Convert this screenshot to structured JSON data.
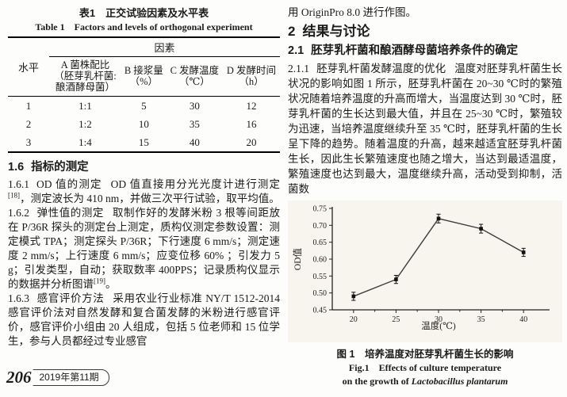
{
  "table": {
    "title_zh": "表1　正交试验因素及水平表",
    "title_en": "Table 1　Factors and levels of orthogonal experiment",
    "level_header": "水平",
    "group_header": "因素",
    "subheaders": [
      [
        "A 菌株配比",
        "（胚芽乳杆菌:",
        "酿酒酵母菌）"
      ],
      [
        "B 接浆量",
        "（%）"
      ],
      [
        "C 发酵温度",
        "（℃）"
      ],
      [
        "D 发酵时间",
        "（h）"
      ]
    ],
    "rows": [
      [
        "1",
        "1:1",
        "5",
        "30",
        "12"
      ],
      [
        "2",
        "1:2",
        "10",
        "35",
        "16"
      ],
      [
        "3",
        "1:4",
        "15",
        "40",
        "20"
      ]
    ]
  },
  "left": {
    "s16_num": "1.6",
    "s16_title": "指标的测定",
    "p161_num": "1.6.1",
    "p161_title": "OD 值的测定",
    "p161_a": "OD 值直接用分光光度计进行测定",
    "p161_sup": "[18]",
    "p161_b": "，测定波长为 410 nm，并做三次平行试验，取平均值。",
    "p162_num": "1.6.2",
    "p162_title": "弹性值的测定",
    "p162_a": "取制作好的发酵米粉 3 根等间距放在 P/36R 探头的测定台上测定，质构仪测定参数设置：测定模式 TPA；测定探头 P/36R；下行速度 6 mm/s；测定速度 2 mm/s；上行速度 6 mm/s；应变位移 60% ；引发力 5 g；引发类型，自动；获取数率 400PPS；记录质构仪显示的数据并分析图谱",
    "p162_sup": "[19]",
    "p162_b": "。",
    "p163_num": "1.6.3",
    "p163_title": "感官评价方法",
    "p163_a": "采用农业行业标准 NY/T 1512-2014 感官评价法对自然发酵和复合菌发酵的米粉进行感官评价，感官评价小组由 20 人组成，包括 5 位老师和 15 位学生，参与人员都经过专业感官"
  },
  "right": {
    "intro": "用 OriginPro 8.0 进行作图。",
    "h2_num": "2",
    "h2_title": "结果与讨论",
    "h21_num": "2.1",
    "h21_title": "胚芽乳杆菌和酿酒酵母菌培养条件的确定",
    "p211_num": "2.1.1",
    "p211_title": "胚芽乳杆菌发酵温度的优化",
    "p211_body": "温度对胚芽乳杆菌生长状况的影响如图 1 所示，胚芽乳杆菌在 20~30 ℃时的繁殖状况随着培养温度的升高而增大，当温度达到 30 ℃时，胚芽乳杆菌的生长达到最大值，并且在 25~30 ℃时，繁殖较为迅速，当培养温度继续升至 35 ℃时，胚芽乳杆菌的生长呈下降的趋势。随着温度的升高，越来越适宜胚芽乳杆菌生长，因此生长繁殖速度也随之增大，当达到最适温度，繁殖速度也达到最大，温度继续升高，活动受到抑制，活菌数",
    "fig_caption_zh": "图 1　培养温度对胚芽乳杆菌生长的影响",
    "fig_caption_en1": "Fig.1　Effects of culture temperature",
    "fig_caption_en2_prefix": "on the growth of ",
    "fig_caption_species": "Lactobacillus plantarum"
  },
  "footer": {
    "page_number": "206",
    "issue": "2019年第11期"
  },
  "chart_data": {
    "type": "line",
    "title": "",
    "xlabel": "温度(℃)",
    "ylabel": "OD值",
    "x": [
      20,
      25,
      30,
      35,
      40
    ],
    "series": [
      {
        "name": "OD值",
        "values": [
          0.49,
          0.54,
          0.72,
          0.69,
          0.62
        ]
      }
    ],
    "error": [
      0.012,
      0.012,
      0.013,
      0.013,
      0.012
    ],
    "xlim": [
      17.5,
      42.5
    ],
    "ylim": [
      0.45,
      0.75
    ],
    "xticks": [
      20,
      25,
      30,
      35,
      40
    ],
    "yticks": [
      0.45,
      0.5,
      0.55,
      0.6,
      0.65,
      0.7,
      0.75
    ],
    "grid": false,
    "legend": false,
    "marker": "square",
    "line_color": "#3c3c3c",
    "marker_color": "#111111",
    "axis_color": "#222222",
    "plot_bg": "#f8f5ee"
  }
}
